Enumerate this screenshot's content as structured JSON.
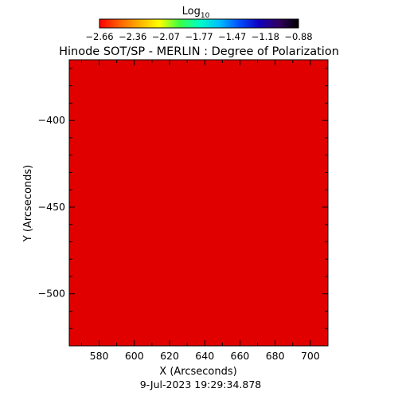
{
  "colorbar": {
    "label_base": "Log",
    "label_sub": "10",
    "tick_labels": [
      "-2.66",
      "-2.36",
      "-2.07",
      "-1.77",
      "-1.47",
      "-1.18",
      "-0.88"
    ],
    "colors": [
      "#ff0000",
      "#ff6000",
      "#ffb000",
      "#ffff00",
      "#40ff40",
      "#00ffc0",
      "#00c0ff",
      "#0050ff",
      "#1000c0",
      "#300060",
      "#000000"
    ]
  },
  "footer": {
    "timestamp": "9-Jul-2023 19:29:34.878"
  },
  "chart_data": {
    "type": "heatmap",
    "title": "Hinode SOT/SP - MERLIN : Degree of Polarization",
    "xlabel": "X (Arcseconds)",
    "ylabel": "Y (Arcseconds)",
    "xlim": [
      563,
      710
    ],
    "ylim": [
      -530,
      -365
    ],
    "x_ticks": [
      580,
      600,
      620,
      640,
      660,
      680,
      700
    ],
    "y_ticks": [
      -400,
      -450,
      -500
    ],
    "value_range": [
      -2.66,
      -0.88
    ],
    "value_label": "Log10 Degree of Polarization"
  }
}
